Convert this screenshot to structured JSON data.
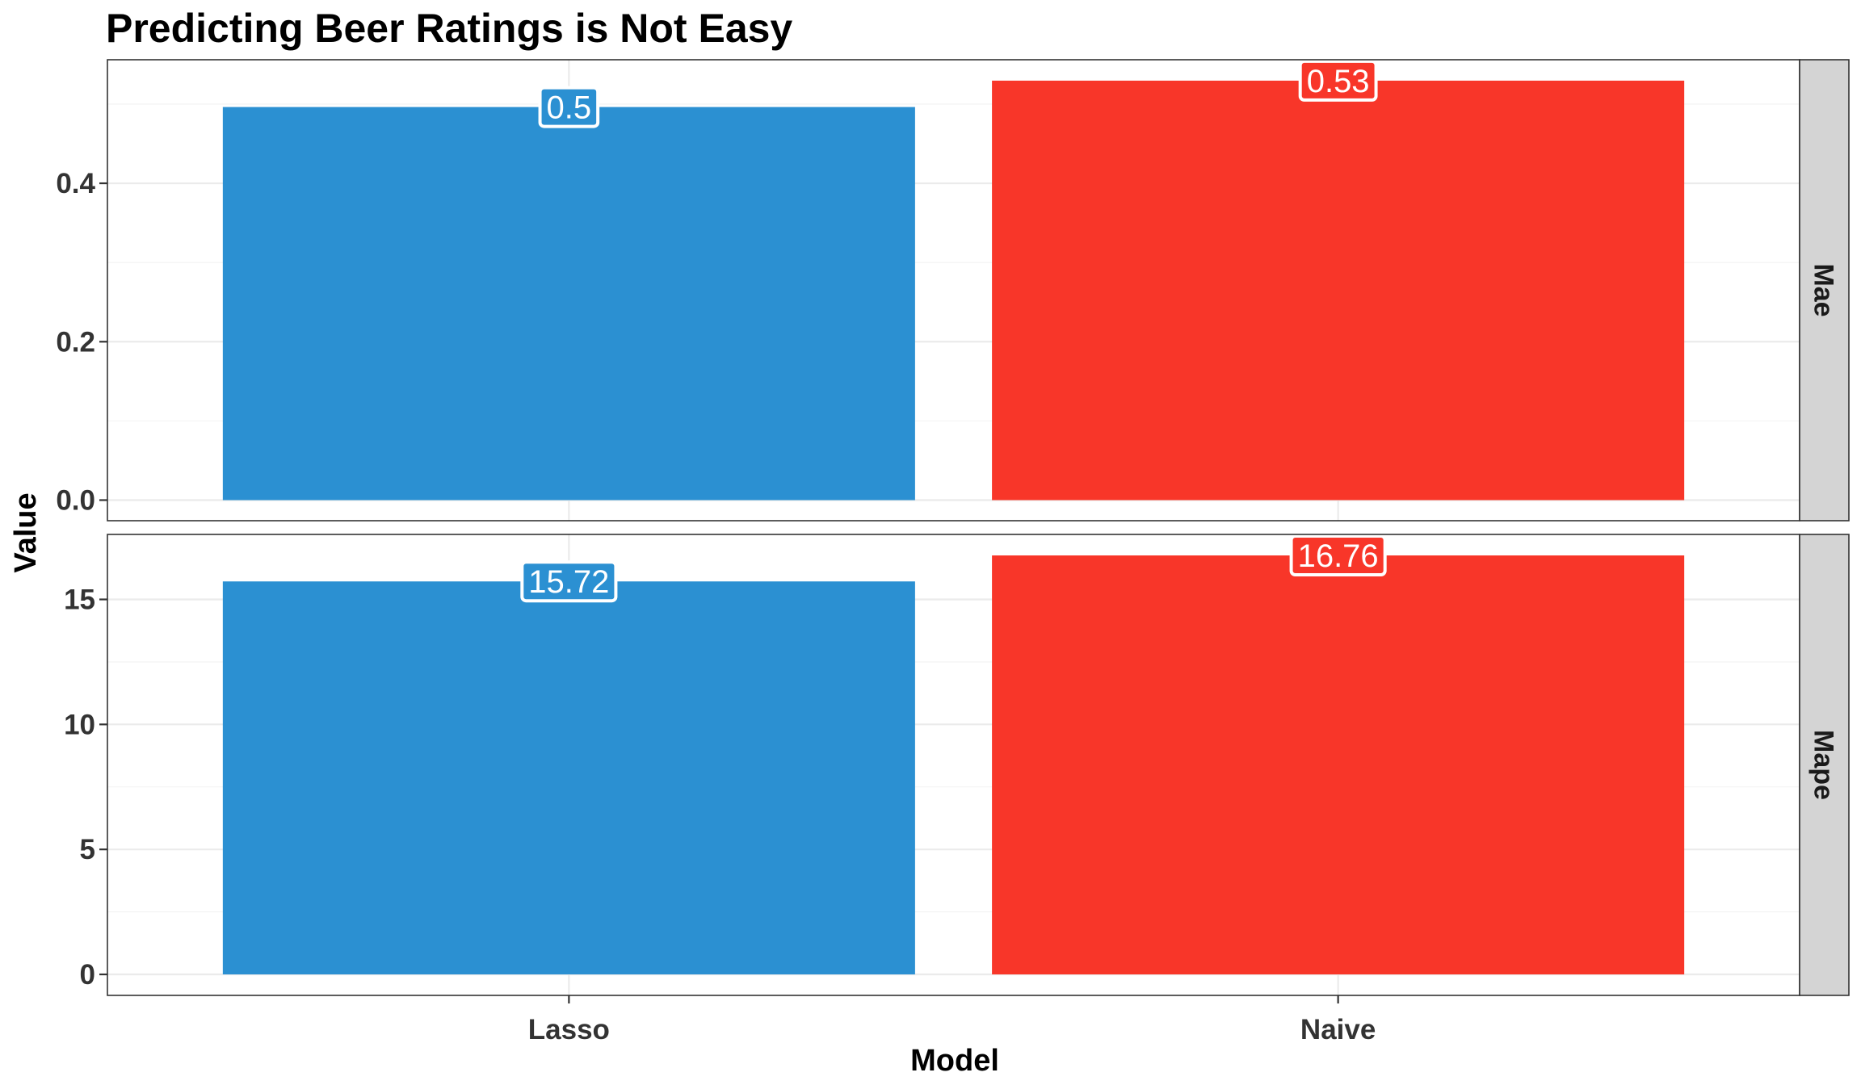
{
  "chart_data": {
    "type": "bar",
    "title": "Predicting Beer Ratings is Not Easy",
    "xlabel": "Model",
    "ylabel": "Value",
    "categories": [
      "Lasso",
      "Naive"
    ],
    "colors": {
      "Lasso": "#2b90d2",
      "Naive": "#f83629"
    },
    "grid": true,
    "legend": "none",
    "facets": [
      {
        "strip": "Mae",
        "values": [
          0.4963,
          0.5296
        ],
        "labels": [
          "0.5",
          "0.53"
        ],
        "ylim": [
          -0.026,
          0.556
        ],
        "yticks": [
          0.0,
          0.2,
          0.4
        ],
        "ytick_labels": [
          "0.0",
          "0.2",
          "0.4"
        ],
        "yminor": [
          0.1,
          0.3,
          0.5
        ]
      },
      {
        "strip": "Mape",
        "values": [
          15.72,
          16.76
        ],
        "labels": [
          "15.72",
          "16.76"
        ],
        "ylim": [
          -0.84,
          17.6
        ],
        "yticks": [
          0,
          5,
          10,
          15
        ],
        "ytick_labels": [
          "0",
          "5",
          "10",
          "15"
        ],
        "yminor": [
          2.5,
          7.5,
          12.5
        ]
      }
    ]
  }
}
